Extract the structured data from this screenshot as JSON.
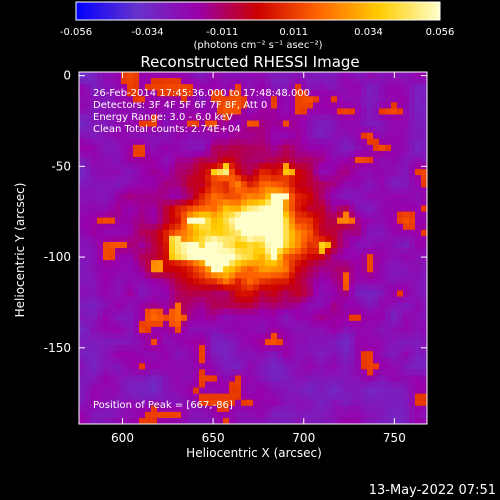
{
  "chart_data": {
    "type": "heatmap",
    "title": "Reconstructed RHESSI Image",
    "xlabel": "Heliocentric X (arcsec)",
    "ylabel": "Heliocentric Y (arcsec)",
    "xlim": [
      576,
      768
    ],
    "ylim": [
      -192,
      2
    ],
    "x_ticks": [
      600,
      650,
      700,
      750
    ],
    "y_ticks": [
      0,
      -50,
      -100,
      -150
    ],
    "colorbar": {
      "ticks": [
        "-0.056",
        "-0.034",
        "-0.011",
        "0.011",
        "0.034",
        "0.056"
      ],
      "tick_values": [
        -0.056,
        -0.034,
        -0.011,
        0.011,
        0.034,
        0.056
      ],
      "unit_label": "(photons cm⁻² s⁻¹ asec⁻²)",
      "colors": [
        "#0000ff",
        "#6633cc",
        "#9900aa",
        "#cc0000",
        "#ff6600",
        "#ffcc00",
        "#ffffcc"
      ]
    },
    "annotations": [
      "26-Feb-2014 17:45:36.000 to 17:48:48.000",
      "Detectors: 3F 4F 5F 6F 7F 8F, Att 0",
      "Energy Range: 3.0 - 6.0 keV",
      "Clean     Total counts: 2.74E+04"
    ],
    "peak_label": "Position of Peak = [667,-86]",
    "peak": [
      667,
      -86
    ],
    "timestamp": "13-May-2022 07:51"
  }
}
